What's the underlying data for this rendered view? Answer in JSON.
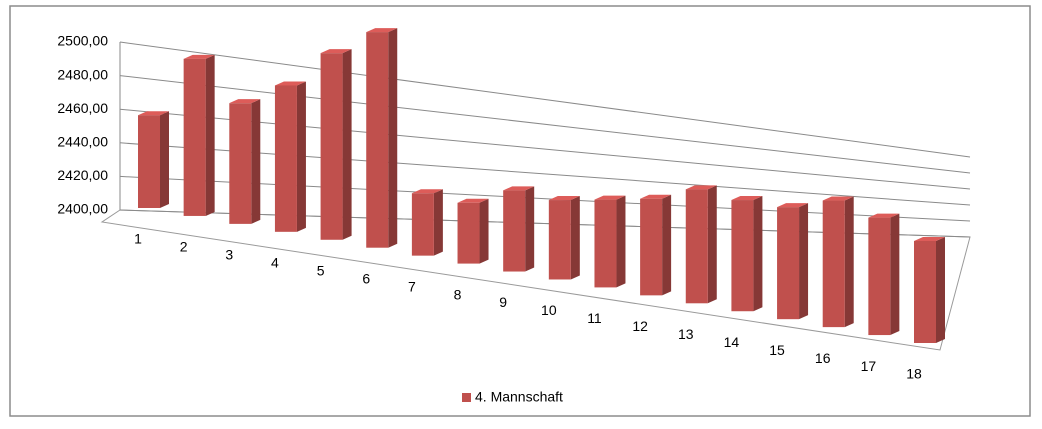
{
  "chart_data": {
    "type": "bar3d",
    "categories": [
      "1",
      "2",
      "3",
      "4",
      "5",
      "6",
      "7",
      "8",
      "9",
      "10",
      "11",
      "12",
      "13",
      "14",
      "15",
      "16",
      "17",
      "18"
    ],
    "series": [
      {
        "name": "4. Mannschaft",
        "color": "#c0504d",
        "values": [
          2458,
          2487,
          2460,
          2466,
          2477,
          2482,
          2422,
          2420,
          2425,
          2423,
          2424,
          2425,
          2428,
          2426,
          2425,
          2427,
          2424,
          2420
        ]
      }
    ],
    "ylim": [
      2400,
      2500
    ],
    "yticks": [
      {
        "value": 2400,
        "label": "2400,00"
      },
      {
        "value": 2420,
        "label": "2420,00"
      },
      {
        "value": 2440,
        "label": "2440,00"
      },
      {
        "value": 2460,
        "label": "2460,00"
      },
      {
        "value": 2480,
        "label": "2480,00"
      },
      {
        "value": 2500,
        "label": "2500,00"
      }
    ],
    "grid": true,
    "legend": "bottom"
  }
}
